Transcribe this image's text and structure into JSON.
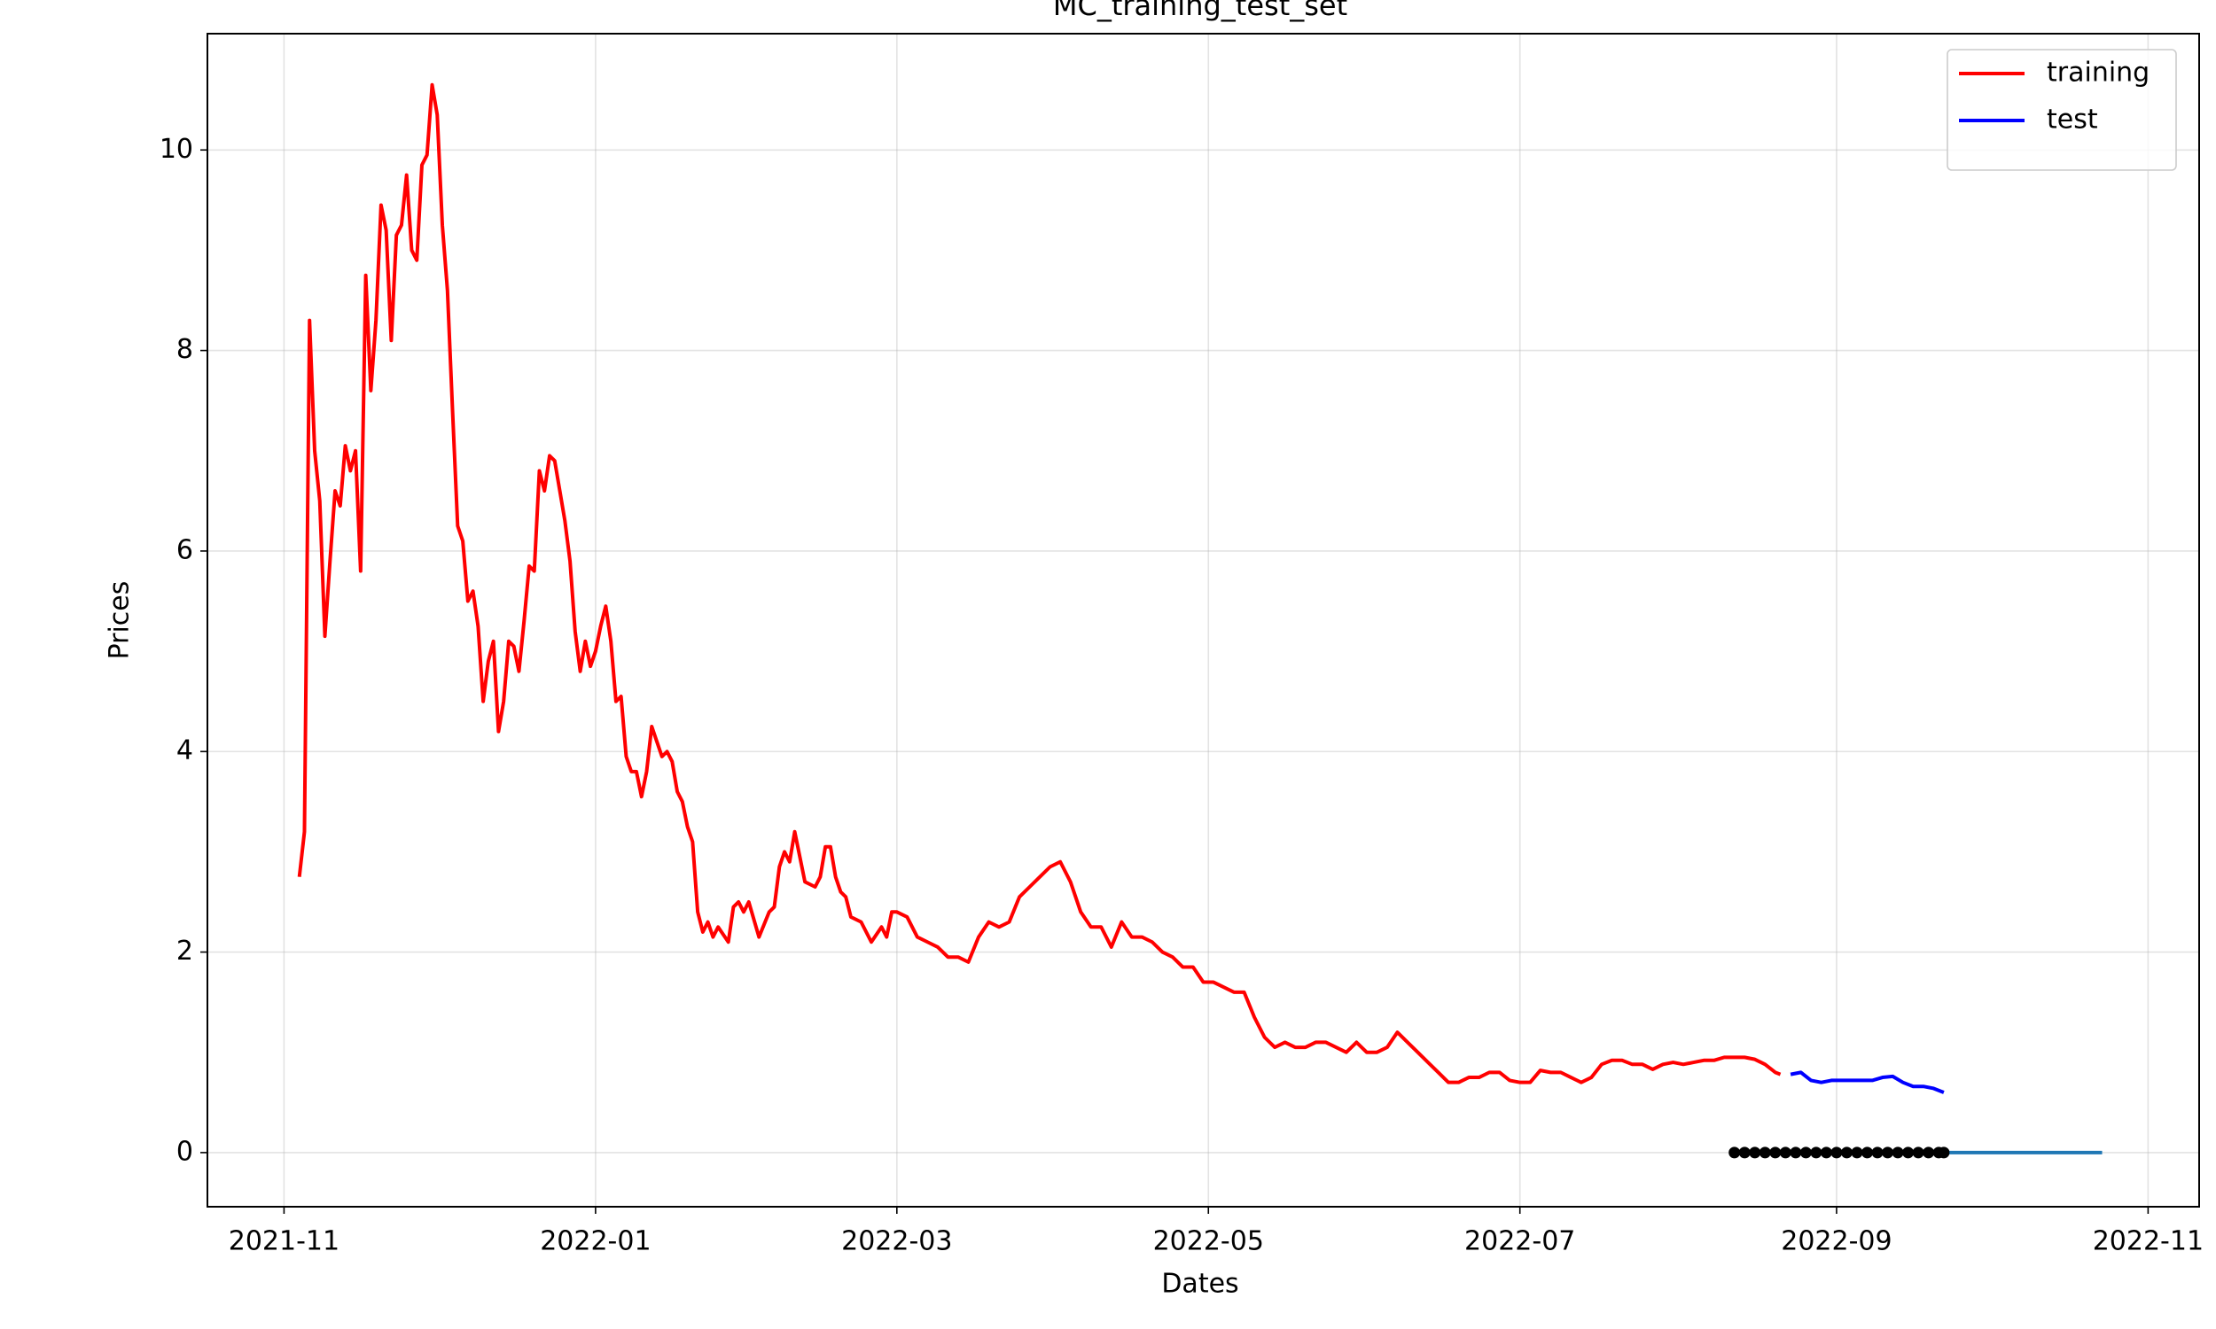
{
  "chart_data": {
    "type": "line",
    "title": "MC_training_test_set",
    "x_label": "Dates",
    "y_label": "Prices",
    "xlim": [
      "2021-10-17",
      "2022-11-11"
    ],
    "ylim": [
      -0.54,
      11.16
    ],
    "xticks": [
      "2021-11",
      "2022-01",
      "2022-03",
      "2022-05",
      "2022-07",
      "2022-09",
      "2022-11"
    ],
    "yticks": [
      0,
      2,
      4,
      6,
      8,
      10
    ],
    "grid": true,
    "legend": "upper right",
    "series": [
      {
        "name": "training",
        "color": "#ff0000",
        "style": "line",
        "x": [
          "2021-11-04",
          "2021-11-05",
          "2021-11-06",
          "2021-11-07",
          "2021-11-08",
          "2021-11-09",
          "2021-11-10",
          "2021-11-11",
          "2021-11-12",
          "2021-11-13",
          "2021-11-14",
          "2021-11-15",
          "2021-11-16",
          "2021-11-17",
          "2021-11-18",
          "2021-11-19",
          "2021-11-20",
          "2021-11-21",
          "2021-11-22",
          "2021-11-23",
          "2021-11-24",
          "2021-11-25",
          "2021-11-26",
          "2021-11-27",
          "2021-11-28",
          "2021-11-29",
          "2021-11-30",
          "2021-12-01",
          "2021-12-02",
          "2021-12-03",
          "2021-12-04",
          "2021-12-05",
          "2021-12-06",
          "2021-12-07",
          "2021-12-08",
          "2021-12-09",
          "2021-12-10",
          "2021-12-11",
          "2021-12-12",
          "2021-12-13",
          "2021-12-14",
          "2021-12-15",
          "2021-12-16",
          "2021-12-17",
          "2021-12-18",
          "2021-12-19",
          "2021-12-20",
          "2021-12-21",
          "2021-12-22",
          "2021-12-23",
          "2021-12-24",
          "2021-12-25",
          "2021-12-26",
          "2021-12-27",
          "2021-12-28",
          "2021-12-29",
          "2021-12-30",
          "2021-12-31",
          "2022-01-01",
          "2022-01-02",
          "2022-01-03",
          "2022-01-04",
          "2022-01-05",
          "2022-01-06",
          "2022-01-07",
          "2022-01-08",
          "2022-01-09",
          "2022-01-10",
          "2022-01-11",
          "2022-01-12",
          "2022-01-13",
          "2022-01-14",
          "2022-01-15",
          "2022-01-16",
          "2022-01-17",
          "2022-01-18",
          "2022-01-19",
          "2022-01-20",
          "2022-01-21",
          "2022-01-22",
          "2022-01-23",
          "2022-01-24",
          "2022-01-25",
          "2022-01-27",
          "2022-01-28",
          "2022-01-29",
          "2022-01-30",
          "2022-01-31",
          "2022-02-02",
          "2022-02-04",
          "2022-02-05",
          "2022-02-06",
          "2022-02-07",
          "2022-02-08",
          "2022-02-09",
          "2022-02-10",
          "2022-02-11",
          "2022-02-13",
          "2022-02-14",
          "2022-02-15",
          "2022-02-16",
          "2022-02-17",
          "2022-02-18",
          "2022-02-19",
          "2022-02-20",
          "2022-02-22",
          "2022-02-24",
          "2022-02-26",
          "2022-02-27",
          "2022-02-28",
          "2022-03-01",
          "2022-03-03",
          "2022-03-05",
          "2022-03-07",
          "2022-03-09",
          "2022-03-11",
          "2022-03-13",
          "2022-03-15",
          "2022-03-17",
          "2022-03-19",
          "2022-03-21",
          "2022-03-23",
          "2022-03-25",
          "2022-03-27",
          "2022-03-29",
          "2022-03-31",
          "2022-04-02",
          "2022-04-04",
          "2022-04-06",
          "2022-04-08",
          "2022-04-10",
          "2022-04-12",
          "2022-04-14",
          "2022-04-16",
          "2022-04-18",
          "2022-04-20",
          "2022-04-22",
          "2022-04-24",
          "2022-04-26",
          "2022-04-28",
          "2022-04-30",
          "2022-05-02",
          "2022-05-04",
          "2022-05-06",
          "2022-05-08",
          "2022-05-10",
          "2022-05-12",
          "2022-05-14",
          "2022-05-16",
          "2022-05-18",
          "2022-05-20",
          "2022-05-22",
          "2022-05-24",
          "2022-05-26",
          "2022-05-28",
          "2022-05-30",
          "2022-06-01",
          "2022-06-03",
          "2022-06-05",
          "2022-06-07",
          "2022-06-09",
          "2022-06-11",
          "2022-06-13",
          "2022-06-15",
          "2022-06-17",
          "2022-06-19",
          "2022-06-21",
          "2022-06-23",
          "2022-06-25",
          "2022-06-27",
          "2022-06-29",
          "2022-07-01",
          "2022-07-03",
          "2022-07-05",
          "2022-07-07",
          "2022-07-09",
          "2022-07-11",
          "2022-07-13",
          "2022-07-15",
          "2022-07-17",
          "2022-07-19",
          "2022-07-21",
          "2022-07-23",
          "2022-07-25",
          "2022-07-27",
          "2022-07-29",
          "2022-07-31",
          "2022-08-02",
          "2022-08-04",
          "2022-08-06",
          "2022-08-08",
          "2022-08-10",
          "2022-08-12",
          "2022-08-14",
          "2022-08-16",
          "2022-08-18",
          "2022-08-20",
          "2022-08-21"
        ],
        "values": [
          2.75,
          3.2,
          8.3,
          7.0,
          6.5,
          5.15,
          5.9,
          6.6,
          6.45,
          7.05,
          6.8,
          7.0,
          5.8,
          8.75,
          7.6,
          8.3,
          9.45,
          9.2,
          8.1,
          9.15,
          9.25,
          9.75,
          9.0,
          8.9,
          9.85,
          9.95,
          10.65,
          10.35,
          9.25,
          8.6,
          7.4,
          6.25,
          6.1,
          5.5,
          5.6,
          5.25,
          4.5,
          4.9,
          5.1,
          4.2,
          4.5,
          5.1,
          5.05,
          4.8,
          5.3,
          5.85,
          5.8,
          6.8,
          6.6,
          6.95,
          6.9,
          6.6,
          6.3,
          5.9,
          5.2,
          4.8,
          5.1,
          4.85,
          5.0,
          5.25,
          5.45,
          5.1,
          4.5,
          4.55,
          3.95,
          3.8,
          3.8,
          3.55,
          3.8,
          4.25,
          4.1,
          3.95,
          4.0,
          3.9,
          3.6,
          3.5,
          3.25,
          3.1,
          2.4,
          2.2,
          2.3,
          2.15,
          2.25,
          2.1,
          2.45,
          2.5,
          2.4,
          2.5,
          2.15,
          2.4,
          2.45,
          2.85,
          3.0,
          2.9,
          3.2,
          2.95,
          2.7,
          2.65,
          2.75,
          3.05,
          3.05,
          2.75,
          2.6,
          2.55,
          2.35,
          2.3,
          2.1,
          2.25,
          2.15,
          2.4,
          2.4,
          2.35,
          2.15,
          2.1,
          2.05,
          1.95,
          1.95,
          1.9,
          2.15,
          2.3,
          2.25,
          2.3,
          2.55,
          2.65,
          2.75,
          2.85,
          2.9,
          2.7,
          2.4,
          2.25,
          2.25,
          2.05,
          2.3,
          2.15,
          2.15,
          2.1,
          2.0,
          1.95,
          1.85,
          1.85,
          1.7,
          1.7,
          1.65,
          1.6,
          1.6,
          1.35,
          1.15,
          1.05,
          1.1,
          1.05,
          1.05,
          1.1,
          1.1,
          1.05,
          1.0,
          1.1,
          1.0,
          1.0,
          1.05,
          1.2,
          1.1,
          1.0,
          0.9,
          0.8,
          0.7,
          0.7,
          0.75,
          0.75,
          0.8,
          0.8,
          0.72,
          0.7,
          0.7,
          0.82,
          0.8,
          0.8,
          0.75,
          0.7,
          0.75,
          0.88,
          0.92,
          0.92,
          0.88,
          0.88,
          0.83,
          0.88,
          0.9,
          0.88,
          0.9,
          0.92,
          0.92,
          0.95,
          0.95,
          0.95,
          0.93,
          0.88,
          0.8,
          0.78
        ]
      },
      {
        "name": "test",
        "color": "#0000ff",
        "style": "line",
        "x": [
          "2022-08-23",
          "2022-08-25",
          "2022-08-27",
          "2022-08-29",
          "2022-08-31",
          "2022-09-02",
          "2022-09-04",
          "2022-09-06",
          "2022-09-08",
          "2022-09-10",
          "2022-09-12",
          "2022-09-14",
          "2022-09-16",
          "2022-09-18",
          "2022-09-20",
          "2022-09-22"
        ],
        "values": [
          0.78,
          0.8,
          0.72,
          0.7,
          0.72,
          0.72,
          0.72,
          0.72,
          0.72,
          0.75,
          0.76,
          0.7,
          0.66,
          0.66,
          0.64,
          0.6
        ]
      },
      {
        "color": "#1f77b4",
        "style": "line",
        "x": [
          "2022-08-12",
          "2022-10-23"
        ],
        "values": [
          0,
          0
        ]
      },
      {
        "color": "#000000",
        "style": "markers",
        "x": [
          "2022-08-12",
          "2022-08-14",
          "2022-08-16",
          "2022-08-18",
          "2022-08-20",
          "2022-08-22",
          "2022-08-24",
          "2022-08-26",
          "2022-08-28",
          "2022-08-30",
          "2022-09-01",
          "2022-09-03",
          "2022-09-05",
          "2022-09-07",
          "2022-09-09",
          "2022-09-11",
          "2022-09-13",
          "2022-09-15",
          "2022-09-17",
          "2022-09-19",
          "2022-09-21",
          "2022-09-22"
        ],
        "values": [
          0,
          0,
          0,
          0,
          0,
          0,
          0,
          0,
          0,
          0,
          0,
          0,
          0,
          0,
          0,
          0,
          0,
          0,
          0,
          0,
          0,
          0
        ]
      }
    ]
  }
}
